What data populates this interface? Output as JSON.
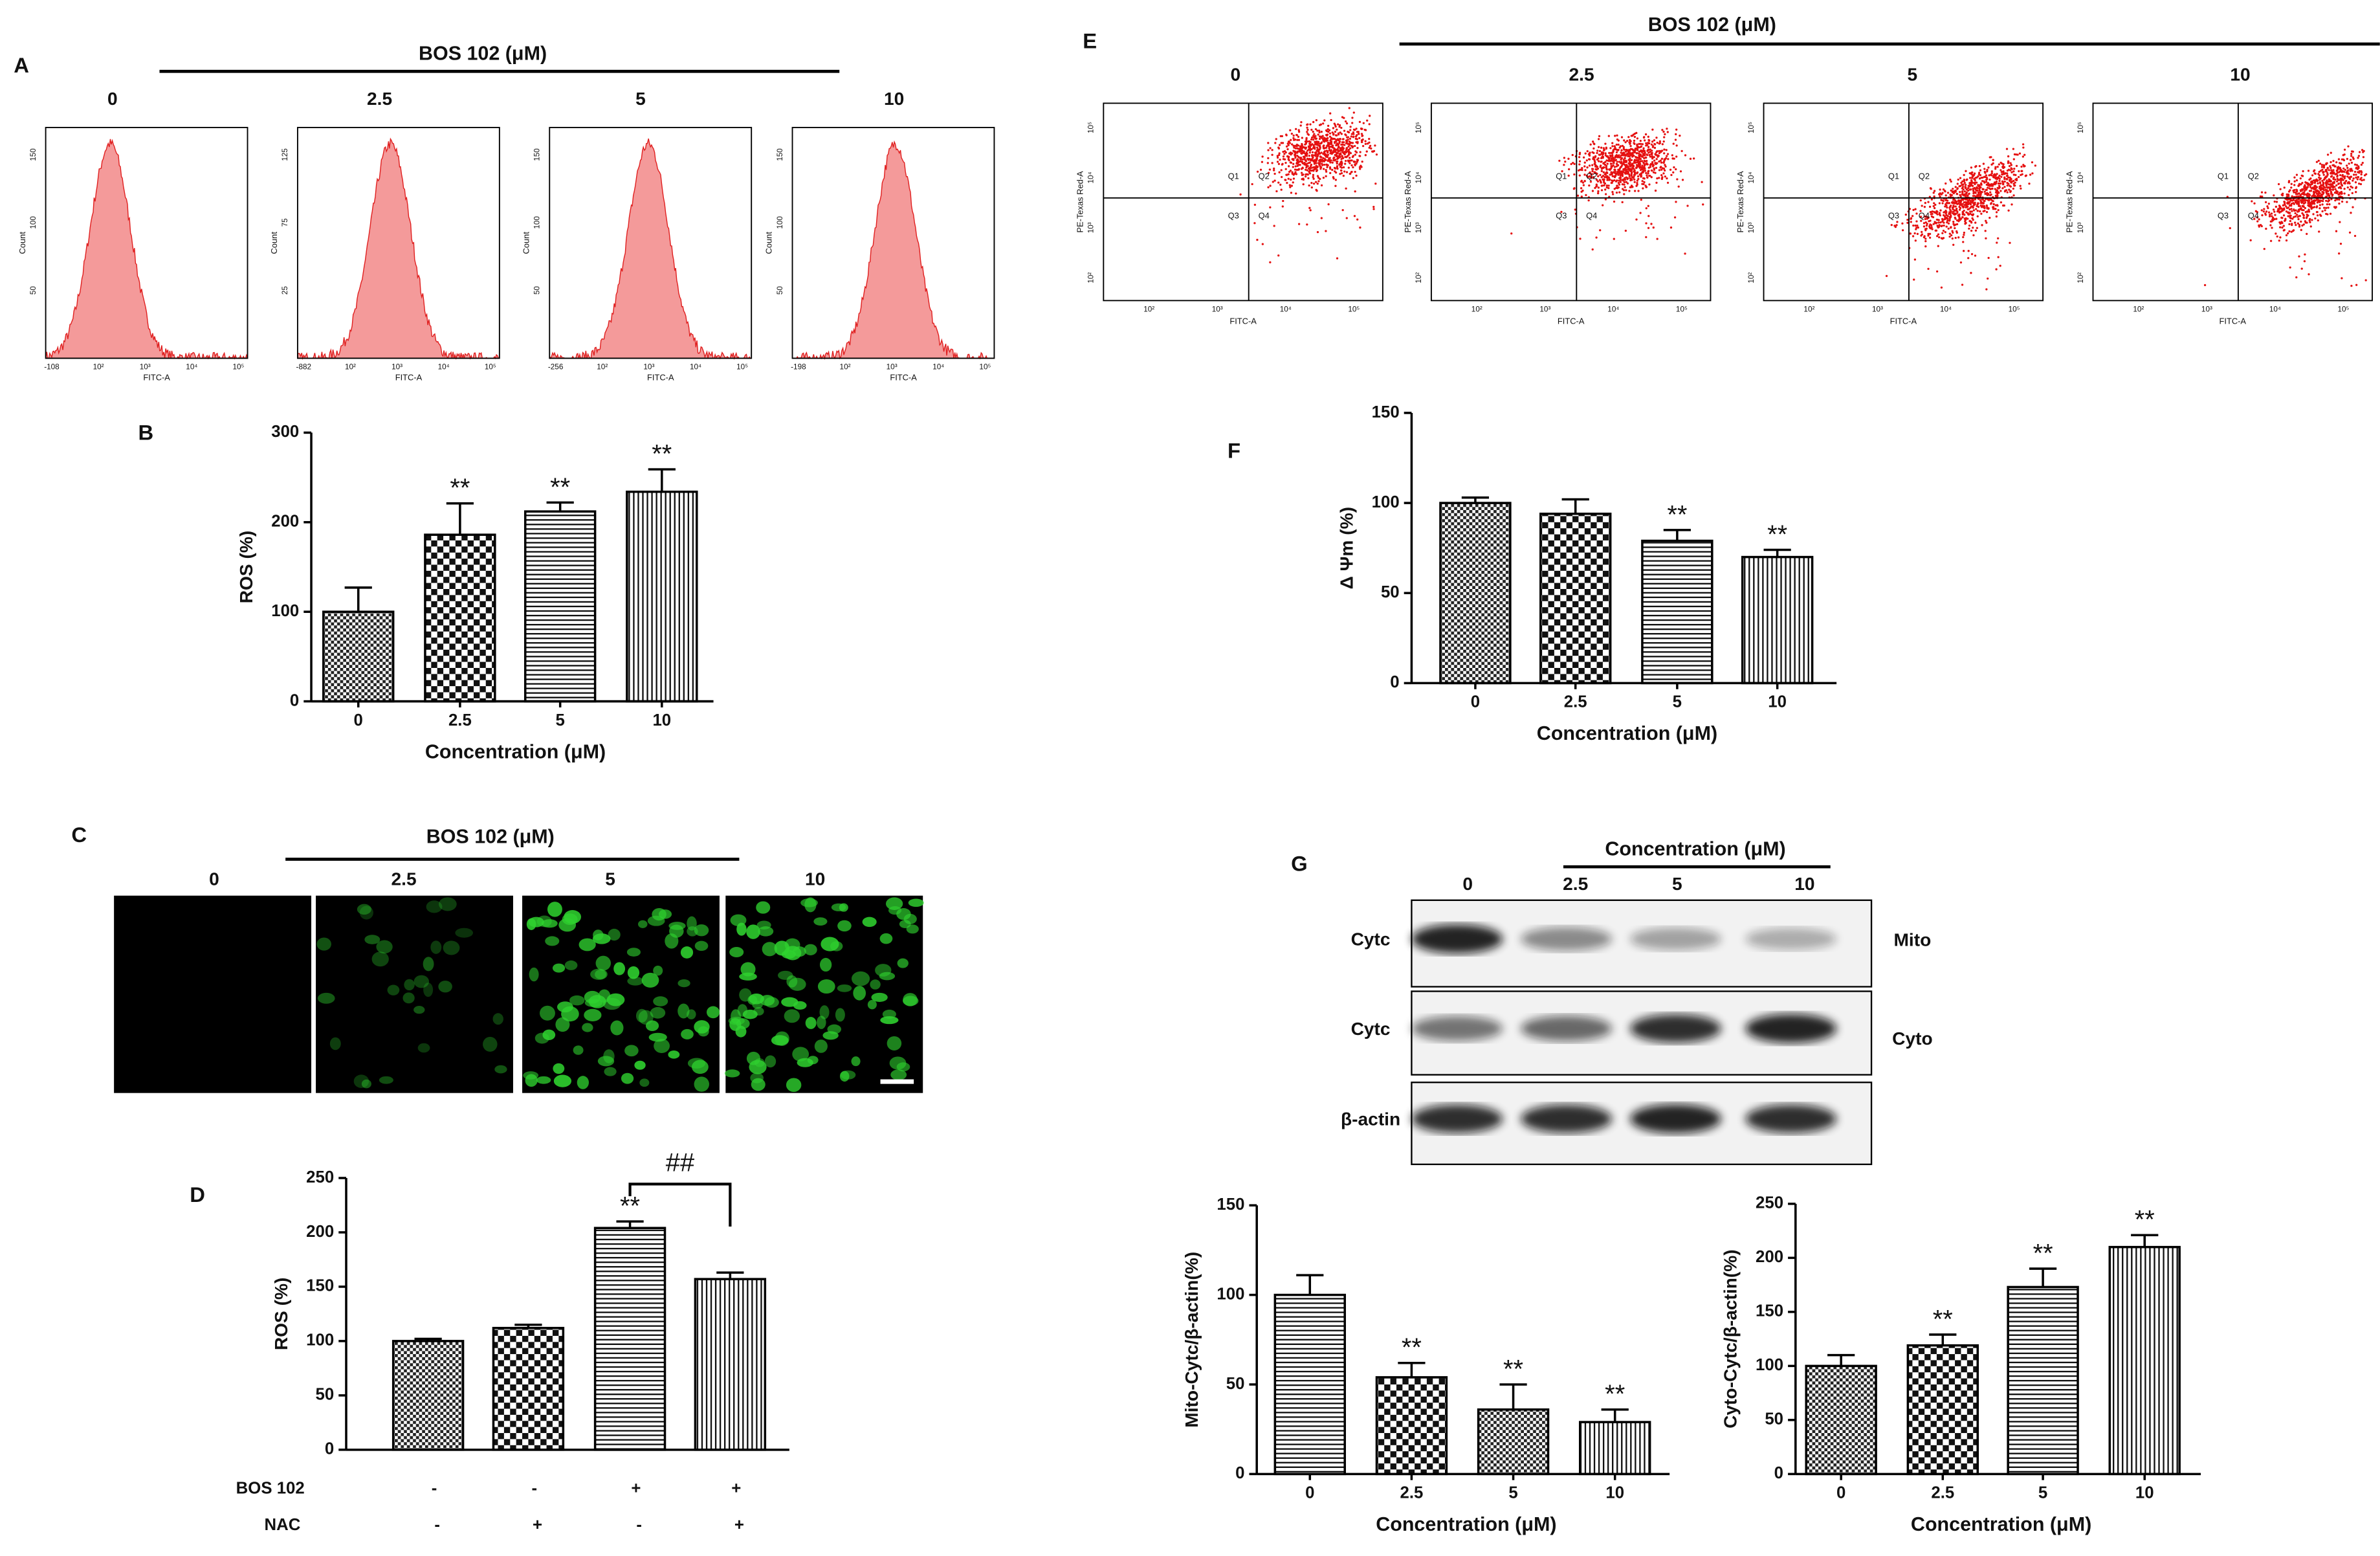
{
  "panel_labels": [
    "A",
    "B",
    "C",
    "D",
    "E",
    "F",
    "G"
  ],
  "panel_a": {
    "header": "BOS 102 (μM)",
    "columns": [
      "0",
      "2.5",
      "5",
      "10"
    ],
    "x_label": "FITC-A",
    "y_label": "Count",
    "xticks": [
      [
        "-108",
        "10²",
        "10³",
        "10⁴",
        "10⁵"
      ],
      [
        "-882",
        "10²",
        "10³",
        "10⁴",
        "10⁵"
      ],
      [
        "-256",
        "10²",
        "10³",
        "10⁴",
        "10⁵"
      ],
      [
        "-198",
        "10²",
        "10³",
        "10⁴",
        "10⁵"
      ]
    ],
    "yticks": [
      [
        "50",
        "100",
        "150"
      ],
      [
        "25",
        "75",
        "125"
      ],
      [
        "50",
        "100",
        "150"
      ],
      [
        "50",
        "100",
        "150"
      ]
    ]
  },
  "panel_c": {
    "header": "BOS 102 (μM)",
    "columns": [
      "0",
      "2.5",
      "5",
      "10"
    ]
  },
  "panel_e": {
    "header": "BOS 102 (μM)",
    "columns": [
      "0",
      "2.5",
      "5",
      "10"
    ],
    "x_label": "FITC-A",
    "y_label": "PE-Texas Red-A",
    "quadrants": [
      "Q1",
      "Q2",
      "Q3",
      "Q4"
    ],
    "xticks": [
      "10²",
      "10³",
      "10⁴",
      "10⁵"
    ],
    "yticks": [
      "10²",
      "10³",
      "10⁴",
      "10⁵"
    ]
  },
  "panel_g_blot": {
    "header": "Concentration (μM)",
    "columns": [
      "0",
      "2.5",
      "5",
      "10"
    ],
    "rows": [
      "Cytc",
      "Cytc",
      "β-actin"
    ],
    "fractions": [
      "Mito",
      "Cyto"
    ]
  },
  "chart_data": [
    {
      "type": "bar",
      "y_label": "ROS (%)",
      "x_label": "Concentration (μM)",
      "categories": [
        "0",
        "2.5",
        "5",
        "10"
      ],
      "values": [
        100,
        186,
        212,
        234
      ],
      "errors": [
        27,
        35,
        10,
        25
      ],
      "significance": [
        null,
        "**",
        "**",
        "**"
      ],
      "patterns": [
        "checker-fine",
        "checker",
        "hlines",
        "vlines"
      ],
      "ylim": [
        0,
        300
      ],
      "yticks": [
        0,
        100,
        200,
        300
      ]
    },
    {
      "type": "bar",
      "y_label": "ROS (%)",
      "row_labels": [
        "BOS  102",
        "NAC"
      ],
      "rows": [
        [
          "-",
          "-",
          "+",
          "+"
        ],
        [
          "-",
          "+",
          "-",
          "+"
        ]
      ],
      "values": [
        100,
        112,
        204,
        157
      ],
      "errors": [
        2,
        3,
        6,
        6
      ],
      "significance": [
        null,
        null,
        "**",
        null
      ],
      "bracket_label": "##",
      "patterns": [
        "checker-fine",
        "checker",
        "hlines",
        "vlines"
      ],
      "ylim": [
        0,
        250
      ],
      "yticks": [
        0,
        50,
        100,
        150,
        200,
        250
      ]
    },
    {
      "type": "bar",
      "y_label": "Δ Ψm (%)",
      "x_label": "Concentration (μM)",
      "categories": [
        "0",
        "2.5",
        "5",
        "10"
      ],
      "values": [
        100,
        94,
        79,
        70
      ],
      "errors": [
        3,
        8,
        6,
        4
      ],
      "significance": [
        null,
        null,
        "**",
        "**"
      ],
      "patterns": [
        "checker-fine",
        "checker",
        "hlines",
        "vlines"
      ],
      "ylim": [
        0,
        150
      ],
      "yticks": [
        0,
        50,
        100,
        150
      ]
    },
    {
      "type": "bar",
      "y_label": "Mito-Cytc/β-actin(%)",
      "x_label": "Concentration (μM)",
      "categories": [
        "0",
        "2.5",
        "5",
        "10"
      ],
      "values": [
        100,
        54,
        36,
        29
      ],
      "errors": [
        11,
        8,
        14,
        7
      ],
      "significance": [
        null,
        "**",
        "**",
        "**"
      ],
      "patterns": [
        "hlines",
        "checker",
        "checker-fine",
        "vlines"
      ],
      "ylim": [
        0,
        150
      ],
      "yticks": [
        0,
        50,
        100,
        150
      ]
    },
    {
      "type": "bar",
      "y_label": "Cyto-Cytc/β-actin(%)",
      "x_label": "Concentration (μM)",
      "categories": [
        "0",
        "2.5",
        "5",
        "10"
      ],
      "values": [
        100,
        119,
        173,
        210
      ],
      "errors": [
        10,
        10,
        17,
        11
      ],
      "significance": [
        null,
        "**",
        "**",
        "**"
      ],
      "patterns": [
        "checker-fine",
        "checker",
        "hlines",
        "vlines"
      ],
      "ylim": [
        0,
        250
      ],
      "yticks": [
        0,
        50,
        100,
        150,
        200,
        250
      ]
    }
  ]
}
